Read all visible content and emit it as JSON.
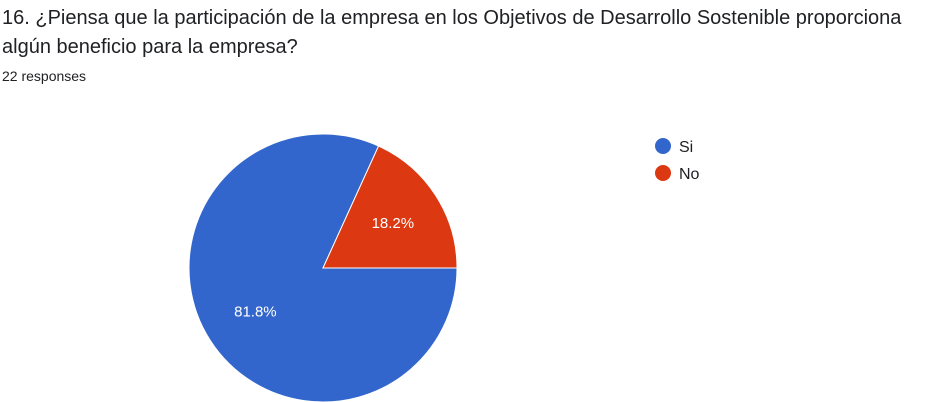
{
  "header": {
    "question": "16. ¿Piensa que la participación de la empresa en los Objetivos de Desarrollo Sostenible proporciona algún beneficio para la empresa?",
    "responses": "22 responses"
  },
  "chart_data": {
    "type": "pie",
    "categories": [
      "Si",
      "No"
    ],
    "values": [
      81.8,
      18.2
    ],
    "value_labels": [
      "81.8%",
      "18.2%"
    ],
    "colors": [
      "#3366cc",
      "#dc3912"
    ],
    "legend_position": "right",
    "start_angle_deg": 90,
    "direction": "counterclockwise"
  }
}
